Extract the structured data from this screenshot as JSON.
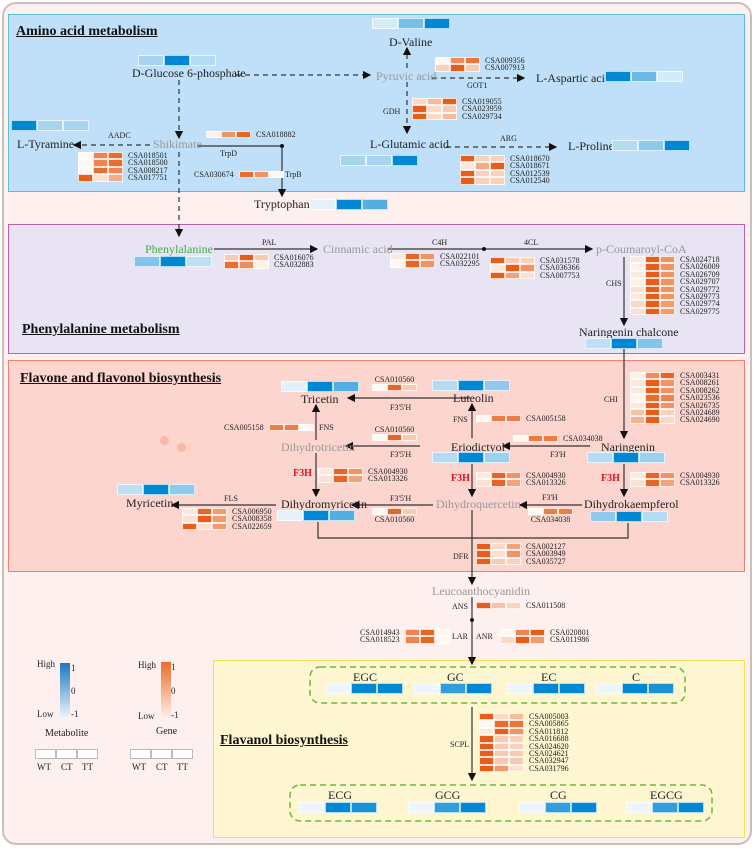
{
  "colors": {
    "metabolite_high": "#0088d4",
    "metabolite_low": "#eef6fc",
    "gene_high": "#e85d1a",
    "gene_low": "#fff8f2",
    "amino_bg": "#bfe0f8",
    "phenyl_bg": "#e8e4f4",
    "flavone_bg": "#fdd5cf",
    "flavanol_bg": "#fdf6d0",
    "highlight_enzyme": "#e0141c"
  },
  "sections": {
    "amino": "Amino acid metabolism",
    "phenyl": "Phenylalanine metabolism",
    "flavone": "Flavone and flavonol biosynthesis",
    "flavanol": "Flavanol biosynthesis"
  },
  "metabolites": {
    "glucose6p": {
      "name": "D-Glucose 6-phosphate",
      "values": [
        -0.4,
        1,
        -0.5
      ]
    },
    "valine": {
      "name": "D-Valine",
      "values": [
        -0.8,
        0,
        1
      ]
    },
    "pyruvic": {
      "name": "Pyruvic acid"
    },
    "aspartic": {
      "name": "L-Aspartic acid",
      "values": [
        1,
        0.1,
        -0.8
      ]
    },
    "tyramine": {
      "name": "L-Tyramine",
      "values": [
        1,
        -0.4,
        -0.4
      ]
    },
    "shikimate": {
      "name": "Shikimate"
    },
    "glutamic": {
      "name": "L-Glutamic acid",
      "values": [
        -0.4,
        -0.4,
        1
      ]
    },
    "proline": {
      "name": "L-Proline",
      "values": [
        -0.5,
        -0.2,
        1
      ]
    },
    "tryptophan": {
      "name": "Tryptophan",
      "values": [
        -0.9,
        1,
        0.3
      ]
    },
    "phenylalanine": {
      "name": "Phenylalanine",
      "values": [
        -0.1,
        1,
        -0.6
      ]
    },
    "cinnamic": {
      "name": "Cinnamic acid"
    },
    "coumaroyl": {
      "name": "p-Coumaroyl-CoA"
    },
    "chalcone": {
      "name": "Naringenin chalcone",
      "values": [
        -0.6,
        1,
        -0.1
      ]
    },
    "tricetin": {
      "name": "Tricetin",
      "values": [
        -0.9,
        1,
        0.3
      ]
    },
    "luteolin": {
      "name": "Luteolin",
      "values": [
        -0.5,
        1,
        -0.2
      ]
    },
    "dihydrotricetin": {
      "name": "Dihydrotricetin"
    },
    "eriodictyol": {
      "name": "Eriodictyol",
      "values": [
        -0.5,
        1,
        -0.3
      ]
    },
    "naringenin": {
      "name": "Naringenin",
      "values": [
        -0.5,
        1,
        -0.3
      ]
    },
    "myricetin": {
      "name": "Myricetin",
      "values": [
        -0.6,
        1,
        -0.2
      ]
    },
    "dihydromyricetin": {
      "name": "Dihydromyricetin",
      "values": [
        -0.9,
        1,
        0.3
      ]
    },
    "dihydroquercetin": {
      "name": "Dihydroquercetin"
    },
    "dihydrokaempferol": {
      "name": "Dihydrokaempferol",
      "values": [
        -0.2,
        1,
        -0.5
      ]
    },
    "leuco": {
      "name": "Leucoanthocyanidin"
    },
    "egc": {
      "name": "EGC",
      "values": [
        -1,
        1,
        1
      ]
    },
    "gc": {
      "name": "GC",
      "values": [
        -1,
        0.6,
        1
      ]
    },
    "ec": {
      "name": "EC",
      "values": [
        -1,
        1,
        1
      ]
    },
    "c": {
      "name": "C",
      "values": [
        -1,
        1,
        0.8
      ]
    },
    "ecg": {
      "name": "ECG",
      "values": [
        -1,
        1,
        0.8
      ]
    },
    "gcg": {
      "name": "GCG",
      "values": [
        -1,
        0.6,
        1
      ]
    },
    "cg": {
      "name": "CG",
      "values": [
        -1,
        0.6,
        1
      ]
    },
    "egcg": {
      "name": "EGCG",
      "values": [
        -1,
        0.6,
        1
      ]
    }
  },
  "enzymes": {
    "aadc": "AADC",
    "trpd": "TrpD",
    "trpb": "TrpB",
    "got1": "GOT1",
    "gdh": "GDH",
    "arg": "ARG",
    "pal": "PAL",
    "c4h": "C4H",
    "4cl": "4CL",
    "chs": "CHS",
    "chi": "CHI",
    "fns1": "FNS",
    "fns2": "FNS",
    "f35h1": "F3'5'H",
    "f35h2": "F3'5'H",
    "f35h3": "F3'5'H",
    "f3h1": "F3H",
    "f3h2": "F3H",
    "f3h3": "F3H",
    "f3ph1": "F3'H",
    "f3ph2": "F3'H",
    "fls": "FLS",
    "dfr": "DFR",
    "ans": "ANS",
    "lar": "LAR",
    "anr": "ANR",
    "scpl": "SCPL"
  },
  "genes": {
    "aadc": [
      {
        "id": "CSA018501",
        "values": [
          -1,
          0.5,
          0.8
        ]
      },
      {
        "id": "CSA018500",
        "values": [
          -1,
          0.5,
          0.8
        ]
      },
      {
        "id": "CSA008217",
        "values": [
          -1,
          0.8,
          0.5
        ]
      },
      {
        "id": "CSA017751",
        "values": [
          1,
          -0.7,
          0
        ]
      }
    ],
    "trpd": [
      {
        "id": "CSA018882",
        "values": [
          -0.9,
          0.3,
          0.9
        ]
      }
    ],
    "trpb": [
      {
        "id": "CSA030674",
        "values": [
          -1,
          0.3,
          0.8
        ]
      }
    ],
    "got1": [
      {
        "id": "CSA009356",
        "values": [
          -1,
          0.4,
          0.7
        ]
      },
      {
        "id": "CSA007913",
        "values": [
          -0.5,
          1,
          -0.4
        ]
      }
    ],
    "gdh": [
      {
        "id": "CSA019055",
        "values": [
          -0.6,
          -0.2,
          1
        ]
      },
      {
        "id": "CSA023959",
        "values": [
          1,
          -0.6,
          -0.4
        ]
      },
      {
        "id": "CSA029734",
        "values": [
          1,
          -0.6,
          -0.2
        ]
      }
    ],
    "arg": [
      {
        "id": "CSA018670",
        "values": [
          1,
          -0.5,
          -0.5
        ]
      },
      {
        "id": "CSA018671",
        "values": [
          -0.8,
          0,
          1
        ]
      },
      {
        "id": "CSA012539",
        "values": [
          1,
          -0.5,
          -0.5
        ]
      },
      {
        "id": "CSA012540",
        "values": [
          1,
          -0.5,
          -0.5
        ]
      }
    ],
    "pal": [
      {
        "id": "CSA016076",
        "values": [
          -0.4,
          1,
          -0.4
        ]
      },
      {
        "id": "CSA032883",
        "values": [
          0.8,
          0.4,
          -0.9
        ]
      }
    ],
    "c4h": [
      {
        "id": "CSA022101",
        "values": [
          -0.8,
          0.9,
          0.3
        ]
      },
      {
        "id": "CSA032295",
        "values": [
          -1,
          0.9,
          0.3
        ]
      }
    ],
    "4cl": [
      {
        "id": "CSA031578",
        "values": [
          1,
          -0.4,
          -0.5
        ]
      },
      {
        "id": "CSA036366",
        "values": [
          -0.8,
          1,
          0.3
        ]
      },
      {
        "id": "CSA007753",
        "values": [
          1,
          0.1,
          -0.7
        ]
      }
    ],
    "chs": [
      {
        "id": "CSA024718",
        "values": [
          -0.8,
          1,
          0.3
        ]
      },
      {
        "id": "CSA026009",
        "values": [
          -0.9,
          1,
          0.3
        ]
      },
      {
        "id": "CSA026709",
        "values": [
          -0.8,
          1,
          0.3
        ]
      },
      {
        "id": "CSA029707",
        "values": [
          -0.9,
          1,
          0.3
        ]
      },
      {
        "id": "CSA029772",
        "values": [
          -0.7,
          1,
          0.3
        ]
      },
      {
        "id": "CSA029773",
        "values": [
          -0.8,
          1,
          0.3
        ]
      },
      {
        "id": "CSA029774",
        "values": [
          -0.6,
          1,
          0.2
        ]
      },
      {
        "id": "CSA029775",
        "values": [
          -0.7,
          1,
          0.2
        ]
      }
    ],
    "chi": [
      {
        "id": "CSA003431",
        "values": [
          -0.9,
          0.4,
          0.9
        ]
      },
      {
        "id": "CSA008261",
        "values": [
          -0.8,
          1,
          0.3
        ]
      },
      {
        "id": "CSA008262",
        "values": [
          -0.8,
          1,
          0.3
        ]
      },
      {
        "id": "CSA023536",
        "values": [
          -1,
          0.8,
          0.5
        ]
      },
      {
        "id": "CSA026735",
        "values": [
          -0.8,
          1,
          0.3
        ]
      },
      {
        "id": "CSA024689",
        "values": [
          -0.3,
          1,
          -0.5
        ]
      },
      {
        "id": "CSA024690",
        "values": [
          -0.1,
          1,
          -0.6
        ]
      }
    ],
    "fns1": [
      {
        "id": "CSA005158",
        "values": [
          -1,
          0.6,
          0.6
        ]
      }
    ],
    "fns2": [
      {
        "id": "CSA005158",
        "values": [
          -1,
          0.6,
          0.6
        ]
      }
    ],
    "f35h1": [
      {
        "id": "CSA010560",
        "values": [
          -1,
          0.9,
          -0.4
        ]
      }
    ],
    "f35h2": [
      {
        "id": "CSA010560",
        "values": [
          -1,
          0.9,
          -0.4
        ]
      }
    ],
    "f35h3": [
      {
        "id": "CSA010560",
        "values": [
          -1,
          0.9,
          -0.4
        ]
      }
    ],
    "f3h1": [
      {
        "id": "CSA004930",
        "values": [
          -0.8,
          0.9,
          0.3
        ]
      },
      {
        "id": "CSA013326",
        "values": [
          -0.7,
          0.9,
          0.1
        ]
      }
    ],
    "f3h2": [
      {
        "id": "CSA004930",
        "values": [
          -0.8,
          0.9,
          0.3
        ]
      },
      {
        "id": "CSA013326",
        "values": [
          -0.7,
          0.9,
          0.1
        ]
      }
    ],
    "f3h3": [
      {
        "id": "CSA004930",
        "values": [
          -0.8,
          0.9,
          0.3
        ]
      },
      {
        "id": "CSA013326",
        "values": [
          -0.7,
          0.9,
          0.1
        ]
      }
    ],
    "f3ph1": [
      {
        "id": "CSA034038",
        "values": [
          -1,
          0.6,
          0.6
        ]
      }
    ],
    "f3ph2": [
      {
        "id": "CSA034038",
        "values": [
          -1,
          0.6,
          0.6
        ]
      }
    ],
    "fls": [
      {
        "id": "CSA006950",
        "values": [
          -0.8,
          0.9,
          0.2
        ]
      },
      {
        "id": "CSA008358",
        "values": [
          -0.7,
          1,
          0.2
        ]
      },
      {
        "id": "CSA022659",
        "values": [
          1,
          -0.7,
          0.2
        ]
      }
    ],
    "dfr": [
      {
        "id": "CSA002127",
        "values": [
          1,
          -0.6,
          0.1
        ]
      },
      {
        "id": "CSA003949",
        "values": [
          1,
          -0.7,
          0.3
        ]
      },
      {
        "id": "CSA035727",
        "values": [
          1,
          -0.4,
          -0.5
        ]
      }
    ],
    "ans": [
      {
        "id": "CSA011508",
        "values": [
          1,
          -0.3,
          -0.5
        ]
      }
    ],
    "lar": [
      {
        "id": "CSA014943",
        "values": [
          -1,
          0.9,
          0.5
        ]
      },
      {
        "id": "CSA018523",
        "values": [
          -1,
          0.9,
          0.5
        ]
      }
    ],
    "anr": [
      {
        "id": "CSA020801",
        "values": [
          -1,
          0.5,
          1
        ]
      },
      {
        "id": "CSA011986",
        "values": [
          -0.6,
          1,
          0.2
        ]
      }
    ],
    "scpl": [
      {
        "id": "CSA005003",
        "values": [
          1,
          -0.6,
          -0.2
        ]
      },
      {
        "id": "CSA005865",
        "values": [
          -1,
          0.8,
          0.7
        ]
      },
      {
        "id": "CSA011812",
        "values": [
          -0.8,
          1,
          0.3
        ]
      },
      {
        "id": "CSA016688",
        "values": [
          1,
          -0.4,
          -0.5
        ]
      },
      {
        "id": "CSA024620",
        "values": [
          1,
          -0.4,
          -0.5
        ]
      },
      {
        "id": "CSA024621",
        "values": [
          1,
          -0.4,
          -0.4
        ]
      },
      {
        "id": "CSA032947",
        "values": [
          1,
          -0.4,
          -0.4
        ]
      },
      {
        "id": "CSA031796",
        "values": [
          1,
          0.2,
          -0.7
        ]
      }
    ]
  },
  "legend": {
    "metabolite": {
      "high": "High",
      "low": "Low",
      "ticks": [
        "1",
        "0",
        "-1"
      ],
      "title": "Metabolite",
      "groups": [
        "WT",
        "CT",
        "TT"
      ]
    },
    "gene": {
      "high": "High",
      "low": "Low",
      "ticks": [
        "1",
        "0",
        "-1"
      ],
      "title": "Gene",
      "groups": [
        "WT",
        "CT",
        "TT"
      ]
    }
  }
}
